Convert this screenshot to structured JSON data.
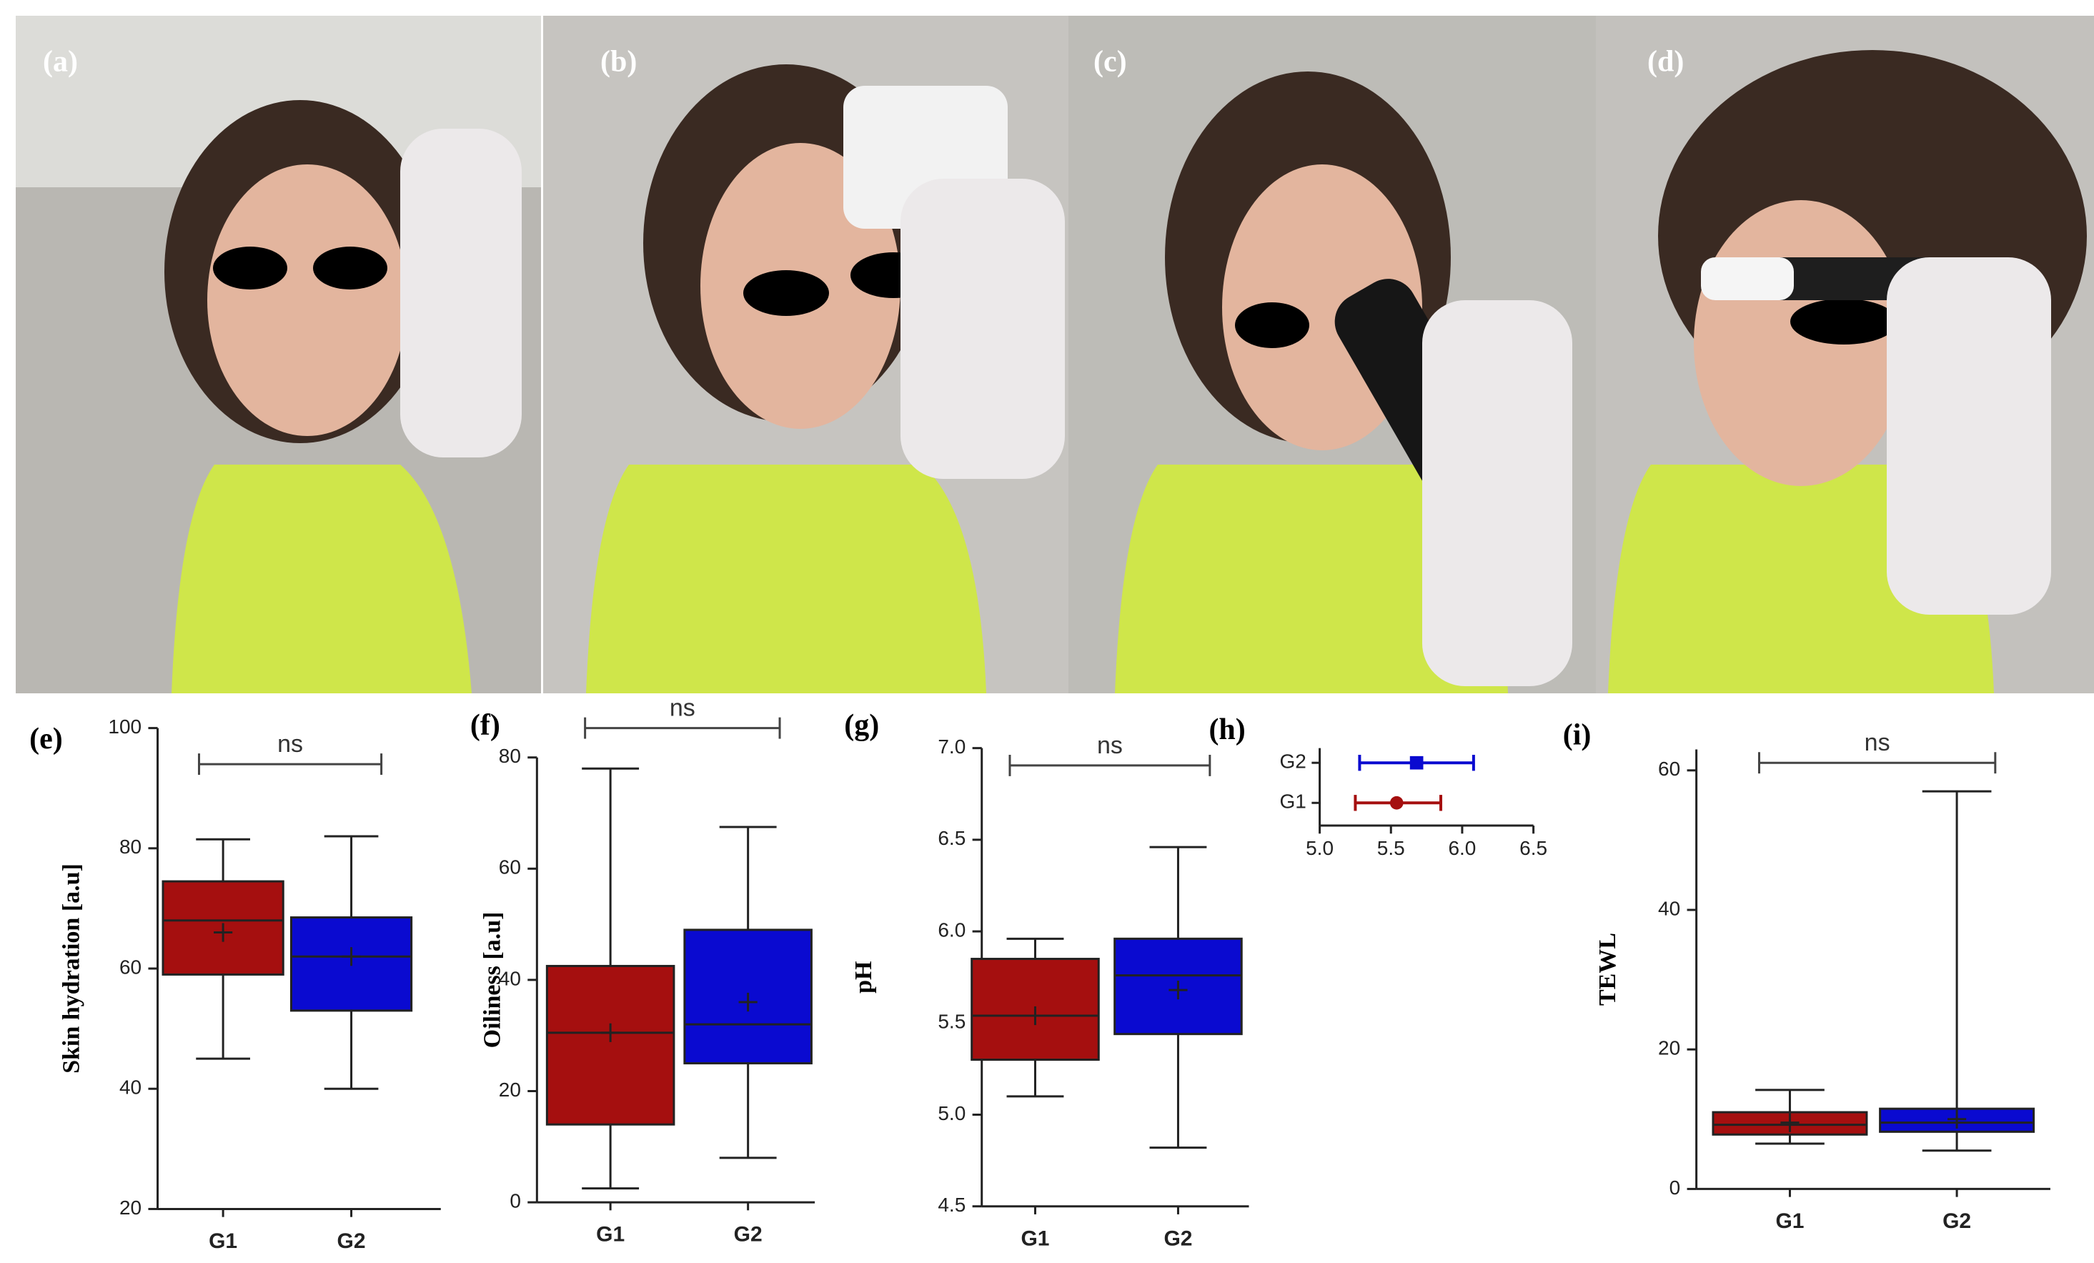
{
  "panels": [
    "(a)",
    "(b)",
    "(c)",
    "(d)"
  ],
  "chart_data": [
    {
      "type": "box",
      "panel": "(e)",
      "ylabel": "Skin hydration [a.u]",
      "annotation": "ns",
      "categories": [
        "G1",
        "G2"
      ],
      "colors": [
        "#a50f0f",
        "#0a0ad0"
      ],
      "boxes": [
        {
          "min": 45,
          "q1": 59,
          "median": 68,
          "q3": 74.5,
          "max": 81.5,
          "mean": 66
        },
        {
          "min": 40,
          "q1": 53,
          "median": 62,
          "q3": 68.5,
          "max": 82,
          "mean": 62
        }
      ],
      "ylim": [
        20,
        100
      ],
      "yticks": [
        20,
        40,
        60,
        80,
        100
      ]
    },
    {
      "type": "box",
      "panel": "(f)",
      "ylabel": "Oiliness [a.u]",
      "annotation": "ns",
      "categories": [
        "G1",
        "G2"
      ],
      "colors": [
        "#a50f0f",
        "#0a0ad0"
      ],
      "boxes": [
        {
          "min": 2.5,
          "q1": 14,
          "median": 30.5,
          "q3": 42.5,
          "max": 78,
          "mean": 30.5
        },
        {
          "min": 8,
          "q1": 25,
          "median": 32,
          "q3": 49,
          "max": 67.5,
          "mean": 36
        }
      ],
      "ylim": [
        0,
        80
      ],
      "yticks": [
        0,
        20,
        40,
        60,
        80
      ]
    },
    {
      "type": "box",
      "panel": "(g)",
      "ylabel": "pH",
      "annotation": "ns",
      "categories": [
        "G1",
        "G2"
      ],
      "colors": [
        "#a50f0f",
        "#0a0ad0"
      ],
      "boxes": [
        {
          "min": 5.1,
          "q1": 5.3,
          "median": 5.54,
          "q3": 5.85,
          "max": 5.96,
          "mean": 5.54
        },
        {
          "min": 4.82,
          "q1": 5.44,
          "median": 5.76,
          "q3": 5.96,
          "max": 6.46,
          "mean": 5.68
        }
      ],
      "ylim": [
        4.5,
        7.0
      ],
      "yticks": [
        4.5,
        {
          "value": 5,
          "label": "5.0"
        },
        5.5,
        {
          "value": 6,
          "label": "6.0"
        },
        6.5,
        {
          "value": 7,
          "label": "7.0"
        }
      ]
    },
    {
      "type": "interval",
      "panel": "(h)",
      "categories": [
        "G2",
        "G1"
      ],
      "colors": [
        "#0a0ad0",
        "#a50f0f"
      ],
      "markers": [
        "square",
        "circle"
      ],
      "values": [
        5.68,
        5.54
      ],
      "lower": [
        5.28,
        5.25
      ],
      "upper": [
        6.08,
        5.85
      ],
      "xlim": [
        5.0,
        6.5
      ],
      "xticks": [
        {
          "value": 5,
          "label": "5.0"
        },
        5.5,
        {
          "value": 6,
          "label": "6.0"
        },
        6.5
      ]
    },
    {
      "type": "box",
      "panel": "(i)",
      "ylabel": "TEWL",
      "annotation": "ns",
      "categories": [
        "G1",
        "G2"
      ],
      "colors": [
        "#a50f0f",
        "#0a0ad0"
      ],
      "boxes": [
        {
          "min": 6.5,
          "q1": 7.8,
          "median": 9.2,
          "q3": 11,
          "max": 14.2,
          "mean": 9.5
        },
        {
          "min": 5.5,
          "q1": 8.2,
          "median": 9.5,
          "q3": 11.5,
          "max": 57,
          "mean": 10
        }
      ],
      "ylim": [
        0,
        63
      ],
      "yticks": [
        0,
        20,
        40,
        60
      ]
    }
  ]
}
